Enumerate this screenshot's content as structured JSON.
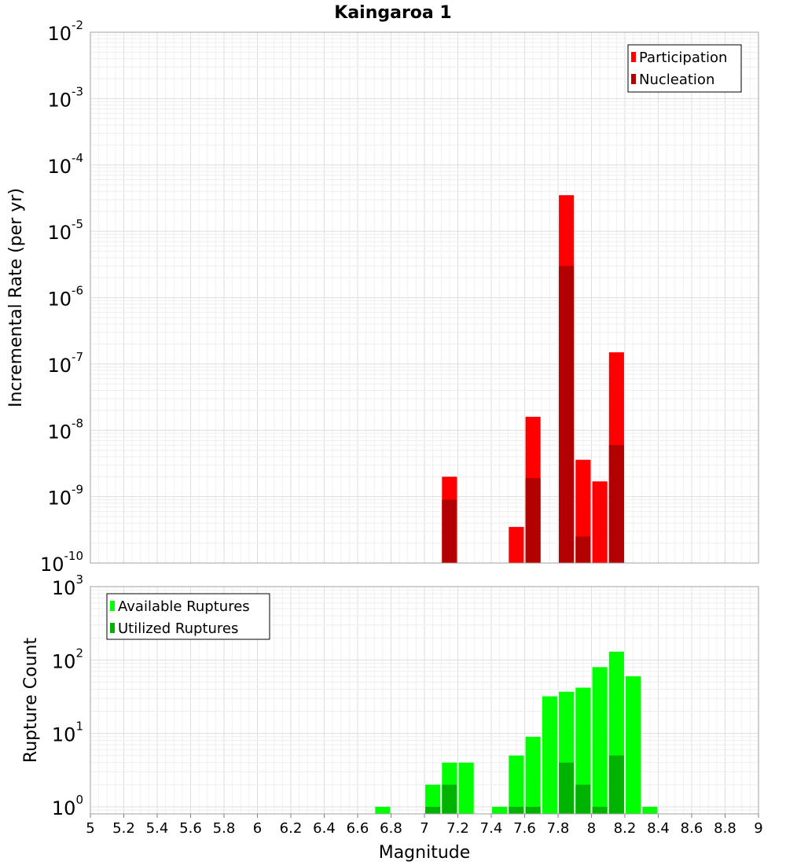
{
  "title": "Kaingaroa 1",
  "chart_data": [
    {
      "type": "bar",
      "ylabel": "Incremental Rate (per yr)",
      "yscale": "log",
      "ylim": [
        1e-10,
        0.01
      ],
      "xlim": [
        5,
        9
      ],
      "y_ticks": [
        {
          "base": "10",
          "exp": "-10",
          "value": 1e-10
        },
        {
          "base": "10",
          "exp": "-9",
          "value": 1e-09
        },
        {
          "base": "10",
          "exp": "-8",
          "value": 1e-08
        },
        {
          "base": "10",
          "exp": "-7",
          "value": 1e-07
        },
        {
          "base": "10",
          "exp": "-6",
          "value": 1e-06
        },
        {
          "base": "10",
          "exp": "-5",
          "value": 1e-05
        },
        {
          "base": "10",
          "exp": "-4",
          "value": 0.0001
        },
        {
          "base": "10",
          "exp": "-3",
          "value": 0.001
        },
        {
          "base": "10",
          "exp": "-2",
          "value": 0.01
        }
      ],
      "legend_position": "top-right",
      "grid": true,
      "series": [
        {
          "name": "Participation",
          "color": "#ff0000",
          "points": [
            {
              "x": 7.15,
              "y": 2e-09
            },
            {
              "x": 7.55,
              "y": 3.5e-10
            },
            {
              "x": 7.65,
              "y": 1.6e-08
            },
            {
              "x": 7.85,
              "y": 3.5e-05
            },
            {
              "x": 7.95,
              "y": 3.6e-09
            },
            {
              "x": 8.05,
              "y": 1.7e-09
            },
            {
              "x": 8.15,
              "y": 1.5e-07
            }
          ]
        },
        {
          "name": "Nucleation",
          "color": "#b30000",
          "points": [
            {
              "x": 7.15,
              "y": 9e-10
            },
            {
              "x": 7.65,
              "y": 1.9e-09
            },
            {
              "x": 7.85,
              "y": 3e-06
            },
            {
              "x": 7.95,
              "y": 2.5e-10
            },
            {
              "x": 8.15,
              "y": 6e-09
            }
          ]
        }
      ]
    },
    {
      "type": "bar",
      "ylabel": "Rupture Count",
      "xlabel": "Magnitude",
      "yscale": "log",
      "ylim": [
        0.8,
        1000
      ],
      "xlim": [
        5,
        9
      ],
      "y_ticks": [
        {
          "base": "10",
          "exp": "0",
          "value": 1
        },
        {
          "base": "10",
          "exp": "1",
          "value": 10
        },
        {
          "base": "10",
          "exp": "2",
          "value": 100
        },
        {
          "base": "10",
          "exp": "3",
          "value": 1000
        }
      ],
      "x_ticks": [
        "5",
        "5.2",
        "5.4",
        "5.6",
        "5.8",
        "6",
        "6.2",
        "6.4",
        "6.6",
        "6.8",
        "7",
        "7.2",
        "7.4",
        "7.6",
        "7.8",
        "8",
        "8.2",
        "8.4",
        "8.6",
        "8.8",
        "9"
      ],
      "legend_position": "top-left",
      "grid": true,
      "series": [
        {
          "name": "Available Ruptures",
          "color": "#00ff00",
          "points": [
            {
              "x": 6.75,
              "y": 1
            },
            {
              "x": 7.05,
              "y": 2
            },
            {
              "x": 7.15,
              "y": 4
            },
            {
              "x": 7.25,
              "y": 4
            },
            {
              "x": 7.45,
              "y": 1
            },
            {
              "x": 7.55,
              "y": 5
            },
            {
              "x": 7.65,
              "y": 9
            },
            {
              "x": 7.75,
              "y": 32
            },
            {
              "x": 7.85,
              "y": 37
            },
            {
              "x": 7.95,
              "y": 42
            },
            {
              "x": 8.05,
              "y": 80
            },
            {
              "x": 8.15,
              "y": 130
            },
            {
              "x": 8.25,
              "y": 60
            },
            {
              "x": 8.35,
              "y": 1
            }
          ]
        },
        {
          "name": "Utilized Ruptures",
          "color": "#00b300",
          "points": [
            {
              "x": 7.05,
              "y": 1
            },
            {
              "x": 7.15,
              "y": 2
            },
            {
              "x": 7.55,
              "y": 1
            },
            {
              "x": 7.65,
              "y": 1
            },
            {
              "x": 7.85,
              "y": 4
            },
            {
              "x": 7.95,
              "y": 2
            },
            {
              "x": 8.05,
              "y": 1
            },
            {
              "x": 8.15,
              "y": 5
            }
          ]
        }
      ]
    }
  ]
}
